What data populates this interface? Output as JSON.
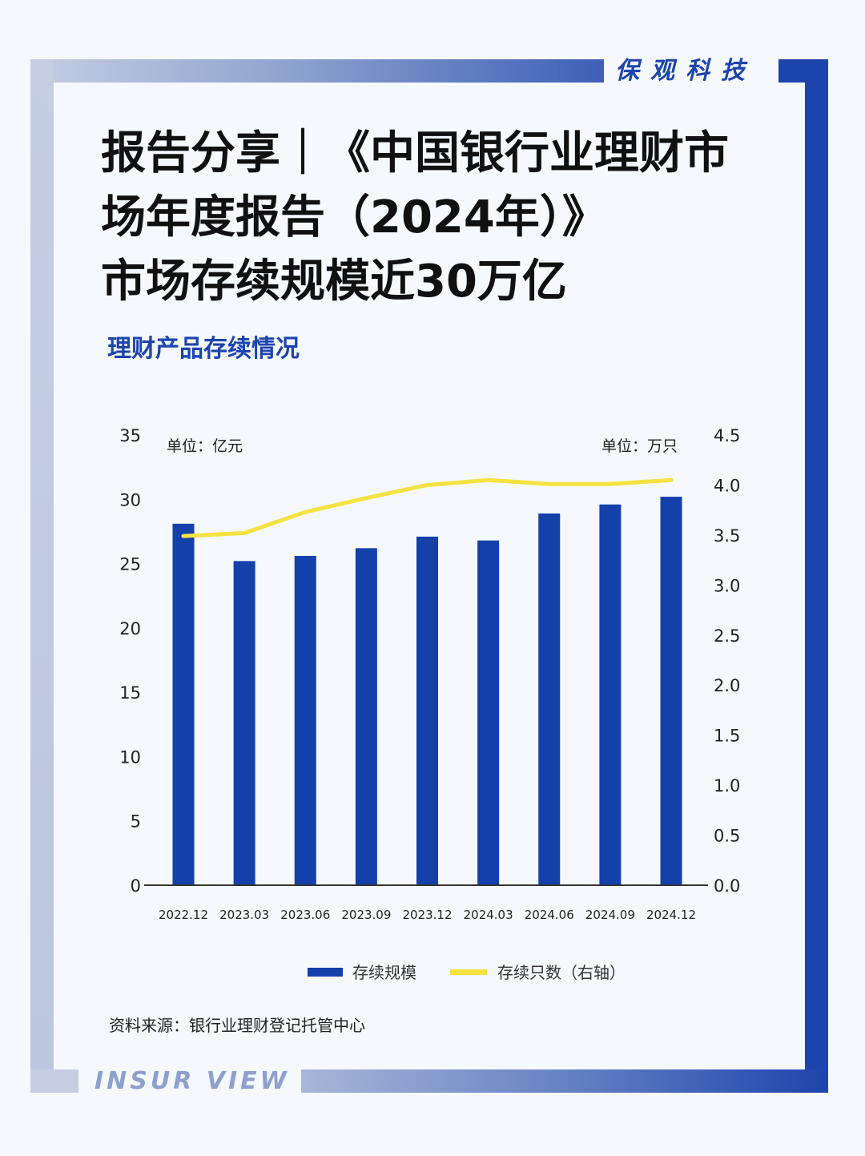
{
  "brand": {
    "cn": "保观科技",
    "en": "INSUR VIEW"
  },
  "colors": {
    "brand_blue": "#1c44ad",
    "bar": "#1440aa",
    "line": "#f4e341",
    "frame_light": "#c5cee3"
  },
  "title_lines": [
    "报告分享｜《中国银行业理财市",
    "场年度报告（2024年）》",
    "市场存续规模近30万亿"
  ],
  "section_title": "理财产品存续情况",
  "chart_data": {
    "type": "bar",
    "title": "",
    "categories": [
      "2022.12",
      "2023.03",
      "2023.06",
      "2023.09",
      "2023.12",
      "2024.03",
      "2024.06",
      "2024.09",
      "2024.12"
    ],
    "series": [
      {
        "name": "存续规模",
        "type": "bar",
        "axis": "left",
        "values": [
          28.1,
          25.2,
          25.6,
          26.2,
          27.1,
          26.8,
          28.9,
          29.6,
          30.2
        ]
      },
      {
        "name": "存续只数（右轴）",
        "type": "line",
        "axis": "right",
        "values": [
          3.49,
          3.52,
          3.73,
          3.87,
          4.0,
          4.05,
          4.01,
          4.01,
          4.05
        ]
      }
    ],
    "y_left": {
      "unit_label": "单位：亿元",
      "range": [
        0,
        35
      ],
      "ticks": [
        "0",
        "5",
        "10",
        "15",
        "20",
        "25",
        "30",
        "35"
      ]
    },
    "y_right": {
      "unit_label": "单位：万只",
      "range": [
        0,
        4.5
      ],
      "ticks": [
        "0.0",
        "0.5",
        "1.0",
        "1.5",
        "2.0",
        "2.5",
        "3.0",
        "3.5",
        "4.0",
        "4.5"
      ]
    },
    "legend_position": "bottom",
    "grid": false
  },
  "source": "资料来源：银行业理财登记托管中心"
}
